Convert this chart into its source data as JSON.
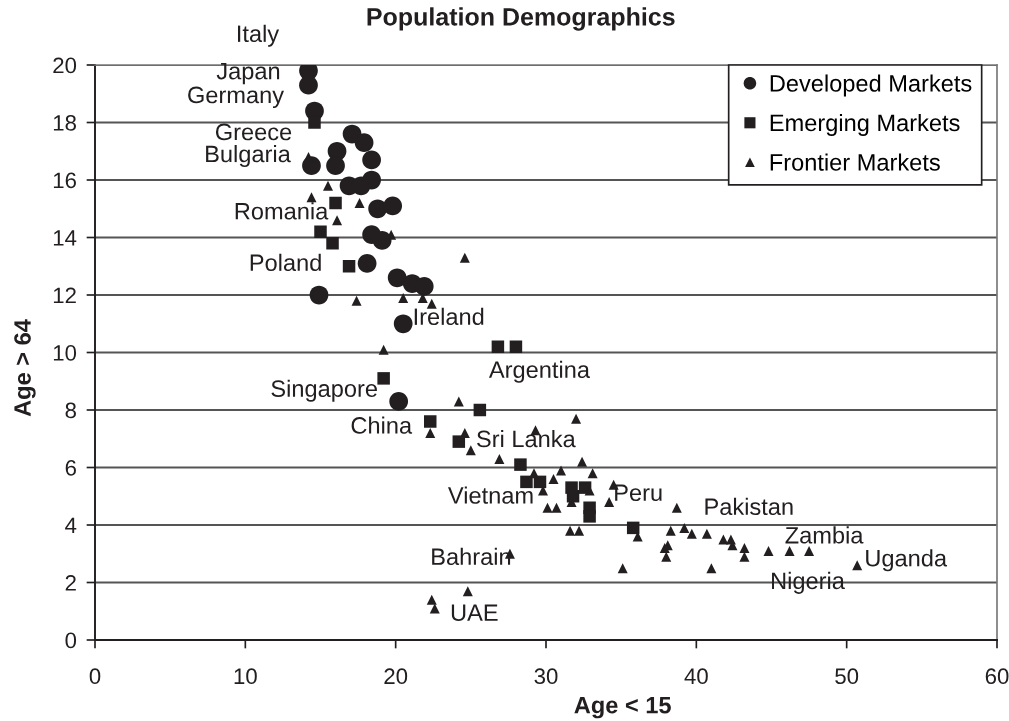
{
  "chart_data": {
    "type": "scatter",
    "title": "Population Demographics",
    "xlabel": "Age < 15",
    "ylabel": "Age > 64",
    "xlim": [
      0,
      60
    ],
    "ylim": [
      0,
      20
    ],
    "xticks": [
      0,
      10,
      20,
      30,
      40,
      50,
      60
    ],
    "yticks": [
      0,
      2,
      4,
      6,
      8,
      10,
      12,
      14,
      16,
      18,
      20
    ],
    "grid": "y",
    "legend": "top right",
    "series": [
      {
        "name": "Developed Markets",
        "color": "#231f20",
        "marker": "circle",
        "x": [
          14.2,
          14.2,
          14.6,
          17.1,
          17.9,
          16.1,
          18.4,
          14.4,
          16.0,
          18.4,
          16.9,
          17.7,
          18.8,
          19.8,
          18.4,
          19.1,
          18.1,
          20.1,
          21.1,
          21.9,
          14.9,
          20.5,
          20.2
        ],
        "values": [
          19.8,
          19.3,
          18.4,
          17.6,
          17.3,
          17.0,
          16.7,
          16.5,
          16.5,
          16.0,
          15.8,
          15.8,
          15.0,
          15.1,
          14.1,
          13.9,
          13.1,
          12.6,
          12.4,
          12.3,
          12.0,
          11.0,
          8.3
        ]
      },
      {
        "name": "Emerging Markets",
        "color": "#231f20",
        "marker": "square",
        "x": [
          14.6,
          16.0,
          15.0,
          15.8,
          16.9,
          26.8,
          28.0,
          19.2,
          25.6,
          22.3,
          24.2,
          28.3,
          28.7,
          29.6,
          31.7,
          31.8,
          32.6,
          32.9,
          32.9,
          35.8
        ],
        "values": [
          18.0,
          15.2,
          14.2,
          13.8,
          13.0,
          10.2,
          10.2,
          9.1,
          8.0,
          7.6,
          6.9,
          6.1,
          5.5,
          5.5,
          5.3,
          5.0,
          5.3,
          4.6,
          4.3,
          3.9
        ]
      },
      {
        "name": "Frontier Markets",
        "color": "#231f20",
        "marker": "triangle",
        "x": [
          14.2,
          14.4,
          15.5,
          17.6,
          16.1,
          19.7,
          24.6,
          17.4,
          20.5,
          21.8,
          22.4,
          19.2,
          24.2,
          22.3,
          24.6,
          25.0,
          29.3,
          32.0,
          26.9,
          32.4,
          31.0,
          29.2,
          33.1,
          30.5,
          29.8,
          31.7,
          32.9,
          34.5,
          34.2,
          30.1,
          30.7,
          31.6,
          32.2,
          36.1,
          38.7,
          38.3,
          39.2,
          39.7,
          40.7,
          41.8,
          42.3,
          42.4,
          43.2,
          43.2,
          37.9,
          38.1,
          38.0,
          35.1,
          41.0,
          44.8,
          46.2,
          47.5,
          50.7,
          27.6,
          22.4,
          22.6,
          24.8
        ],
        "values": [
          16.8,
          15.4,
          15.8,
          15.2,
          14.6,
          14.1,
          13.3,
          11.8,
          11.9,
          11.9,
          11.7,
          10.1,
          8.3,
          7.2,
          7.2,
          6.6,
          7.3,
          7.7,
          6.3,
          6.2,
          5.9,
          5.8,
          5.8,
          5.6,
          5.2,
          4.8,
          5.2,
          5.4,
          4.8,
          4.6,
          4.6,
          3.8,
          3.8,
          3.6,
          4.6,
          3.8,
          3.9,
          3.7,
          3.7,
          3.5,
          3.5,
          3.3,
          3.2,
          2.9,
          3.2,
          3.3,
          2.9,
          2.5,
          2.5,
          3.1,
          3.1,
          3.1,
          2.6,
          3.0,
          1.4,
          1.1,
          1.7
        ]
      }
    ],
    "annotations": [
      {
        "text": "Italy",
        "x": 14.2,
        "y": 19.8
      },
      {
        "text": "Japan",
        "x": 14.2,
        "y": 19.3
      },
      {
        "text": "Germany",
        "x": 14.6,
        "y": 18.4
      },
      {
        "text": "Greece",
        "x": 14.6,
        "y": 18.0
      },
      {
        "text": "Bulgaria",
        "x": 14.2,
        "y": 16.8
      },
      {
        "text": "Romania",
        "x": 16.1,
        "y": 14.6
      },
      {
        "text": "Poland",
        "x": 16.9,
        "y": 13.0
      },
      {
        "text": "Ireland",
        "x": 20.5,
        "y": 11.0
      },
      {
        "text": "Argentina",
        "x": 28.0,
        "y": 10.2
      },
      {
        "text": "Singapore",
        "x": 20.2,
        "y": 8.3
      },
      {
        "text": "China",
        "x": 22.3,
        "y": 7.6
      },
      {
        "text": "Sri Lanka",
        "x": 24.6,
        "y": 7.2
      },
      {
        "text": "Vietnam",
        "x": 29.8,
        "y": 5.2
      },
      {
        "text": "Peru",
        "x": 34.5,
        "y": 5.4
      },
      {
        "text": "Pakistan",
        "x": 38.7,
        "y": 4.6
      },
      {
        "text": "Zambia",
        "x": 47.5,
        "y": 3.1
      },
      {
        "text": "Uganda",
        "x": 50.7,
        "y": 2.6
      },
      {
        "text": "Nigeria",
        "x": 44.8,
        "y": 3.1
      },
      {
        "text": "Bahrain",
        "x": 27.6,
        "y": 3.0
      },
      {
        "text": "UAE",
        "x": 24.8,
        "y": 1.7
      }
    ]
  }
}
